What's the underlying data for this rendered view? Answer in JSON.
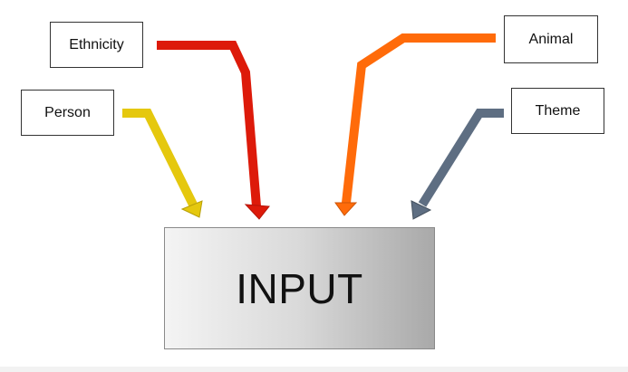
{
  "diagram": {
    "center": {
      "label": "INPUT"
    },
    "sources": [
      {
        "label": "Ethnicity",
        "arrow_color": "#dd1a0a"
      },
      {
        "label": "Person",
        "arrow_color": "#e5c80e"
      },
      {
        "label": "Animal",
        "arrow_color": "#ff6b0a"
      },
      {
        "label": "Theme",
        "arrow_color": "#5e6e82"
      }
    ],
    "input_gradient": [
      "#f4f4f4",
      "#a9a9a9"
    ]
  }
}
